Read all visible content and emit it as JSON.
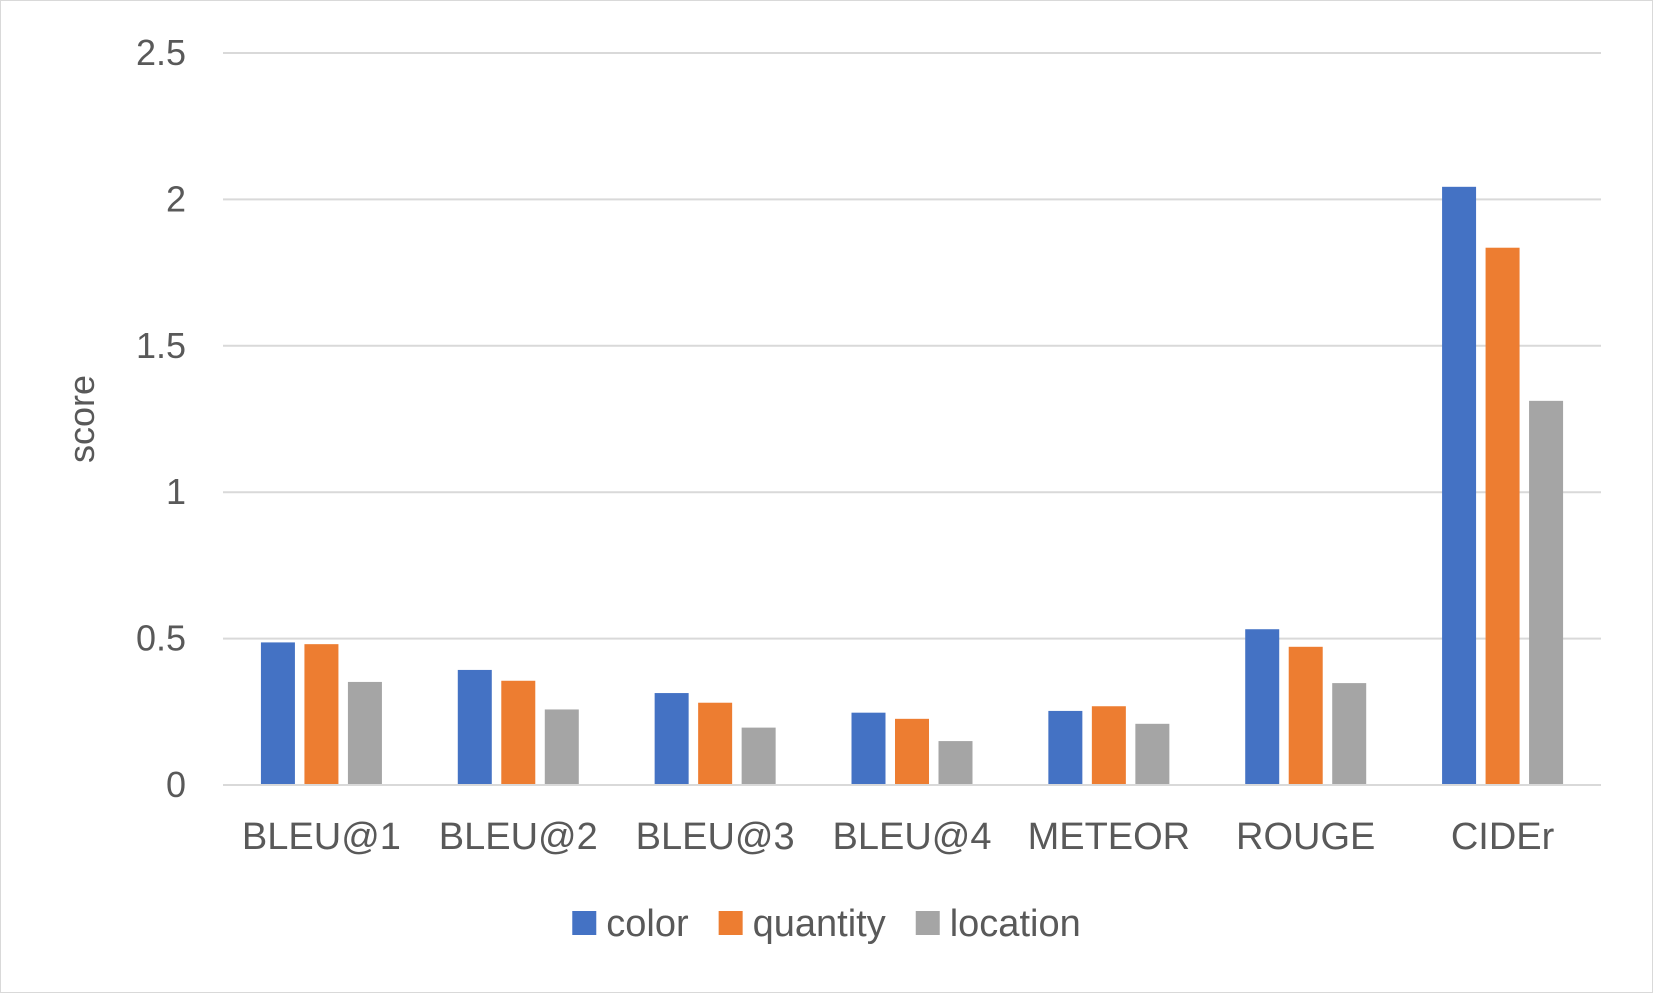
{
  "chart_data": {
    "type": "bar",
    "title": "",
    "xlabel": "",
    "ylabel": "score",
    "ylim": [
      0,
      2.5
    ],
    "yticks": [
      0,
      0.5,
      1,
      1.5,
      2,
      2.5
    ],
    "ytick_labels": [
      "0",
      "0.5",
      "1",
      "1.5",
      "2",
      "2.5"
    ],
    "grid": true,
    "legend_position": "bottom",
    "categories": [
      "BLEU@1",
      "BLEU@2",
      "BLEU@3",
      "BLEU@4",
      "METEOR",
      "ROUGE",
      "CIDEr"
    ],
    "series": [
      {
        "name": "color",
        "color": "#4472C4",
        "values": [
          0.487,
          0.393,
          0.314,
          0.247,
          0.253,
          0.532,
          2.043
        ]
      },
      {
        "name": "quantity",
        "color": "#ED7D31",
        "values": [
          0.481,
          0.356,
          0.281,
          0.226,
          0.269,
          0.472,
          1.835
        ]
      },
      {
        "name": "location",
        "color": "#A5A5A5",
        "values": [
          0.352,
          0.258,
          0.196,
          0.15,
          0.209,
          0.348,
          1.312
        ]
      }
    ]
  }
}
